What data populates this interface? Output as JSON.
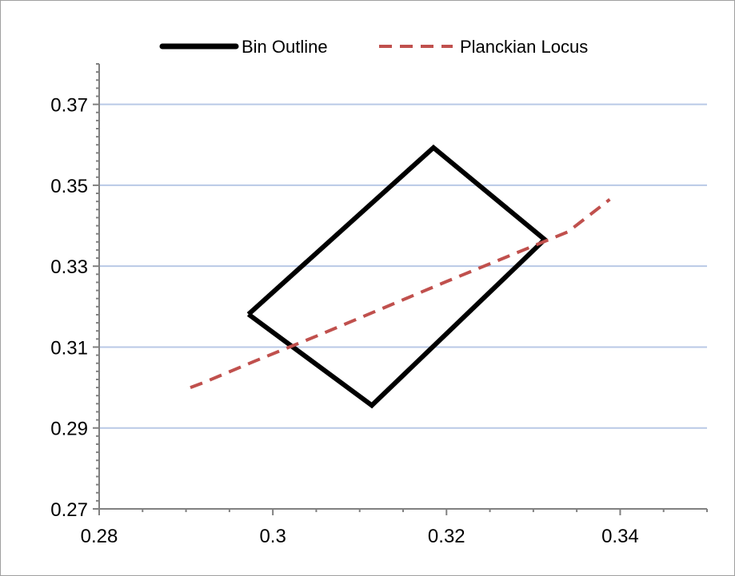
{
  "chart_data": {
    "type": "line",
    "title": "",
    "xlabel": "",
    "ylabel": "",
    "xlim": [
      0.28,
      0.35
    ],
    "ylim": [
      0.27,
      0.38
    ],
    "x_ticks": [
      0.28,
      0.3,
      0.32,
      0.34
    ],
    "x_tick_labels": [
      "0.28",
      "0.3",
      "0.32",
      "0.34"
    ],
    "y_ticks": [
      0.27,
      0.29,
      0.31,
      0.33,
      0.35,
      0.37
    ],
    "y_tick_labels": [
      "0.27",
      "0.29",
      "0.31",
      "0.33",
      "0.35",
      "0.37"
    ],
    "grid": "horizontal",
    "legend_position": "top",
    "series": [
      {
        "name": "Bin Outline",
        "color": "#000000",
        "style": "solid",
        "points": [
          [
            0.2972,
            0.3181
          ],
          [
            0.3185,
            0.3593
          ],
          [
            0.3313,
            0.3366
          ],
          [
            0.3114,
            0.2956
          ],
          [
            0.2972,
            0.3181
          ]
        ]
      },
      {
        "name": "Planckian Locus",
        "color": "#c0504d",
        "style": "dashed",
        "points": [
          [
            0.2905,
            0.3
          ],
          [
            0.292,
            0.3012
          ],
          [
            0.298,
            0.3066
          ],
          [
            0.305,
            0.3127
          ],
          [
            0.31,
            0.3172
          ],
          [
            0.315,
            0.3217
          ],
          [
            0.32,
            0.3262
          ],
          [
            0.325,
            0.3306
          ],
          [
            0.33,
            0.335
          ],
          [
            0.334,
            0.3385
          ],
          [
            0.3388,
            0.3465
          ]
        ]
      }
    ]
  }
}
